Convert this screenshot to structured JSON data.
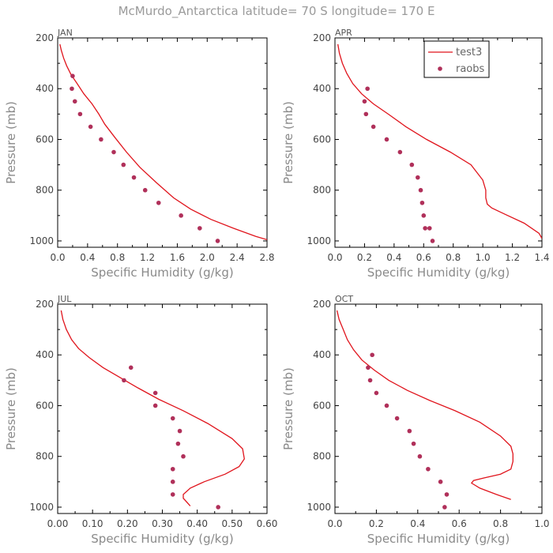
{
  "figure": {
    "title": "McMurdo_Antarctica  latitude= 70 S longitude= 170 E",
    "ylabel": "Pressure (mb)",
    "xlabel": "Specific Humidity (g/kg)"
  },
  "colors": {
    "line": "#e0141c",
    "points": "#b0305a",
    "axis": "#000000"
  },
  "legend": {
    "panel": 1,
    "entries": [
      {
        "label": "test3",
        "kind": "line"
      },
      {
        "label": "raobs",
        "kind": "point"
      }
    ]
  },
  "chart_data": [
    {
      "type": "line",
      "panel_label": "JAN",
      "xlabel": "Specific Humidity (g/kg)",
      "ylabel": "Pressure (mb)",
      "xlim": [
        0,
        2.8
      ],
      "ylim": [
        200,
        1025
      ],
      "y_inverted": true,
      "xticks": [
        "0.0",
        "0.4",
        "0.8",
        "1.2",
        "1.6",
        "2.0",
        "2.4",
        "2.8"
      ],
      "yticks": [
        "200",
        "400",
        "600",
        "800",
        "1000"
      ],
      "series": [
        {
          "name": "test3",
          "style": "line",
          "x": [
            0.03,
            0.05,
            0.08,
            0.12,
            0.18,
            0.26,
            0.35,
            0.46,
            0.55,
            0.63,
            0.76,
            0.92,
            1.1,
            1.32,
            1.55,
            1.78,
            2.05,
            2.35,
            2.65,
            2.8
          ],
          "y": [
            225,
            250,
            280,
            310,
            345,
            380,
            420,
            460,
            500,
            540,
            590,
            650,
            710,
            770,
            830,
            875,
            915,
            950,
            982,
            995
          ]
        },
        {
          "name": "raobs",
          "style": "point",
          "x": [
            0.2,
            0.19,
            0.23,
            0.3,
            0.44,
            0.58,
            0.75,
            0.88,
            1.02,
            1.17,
            1.35,
            1.65,
            1.9,
            2.14
          ],
          "y": [
            350,
            400,
            450,
            500,
            550,
            600,
            650,
            700,
            750,
            800,
            850,
            900,
            950,
            1000
          ]
        }
      ]
    },
    {
      "type": "line",
      "panel_label": "APR",
      "xlabel": "Specific Humidity (g/kg)",
      "ylabel": "Pressure (mb)",
      "xlim": [
        0,
        1.4
      ],
      "ylim": [
        200,
        1025
      ],
      "y_inverted": true,
      "xticks": [
        "0.0",
        "0.2",
        "0.4",
        "0.6",
        "0.8",
        "1.0",
        "1.2",
        "1.4"
      ],
      "yticks": [
        "200",
        "400",
        "600",
        "800",
        "1000"
      ],
      "series": [
        {
          "name": "test3",
          "style": "line",
          "x": [
            0.02,
            0.03,
            0.05,
            0.08,
            0.12,
            0.18,
            0.26,
            0.36,
            0.48,
            0.62,
            0.78,
            0.92,
            1.0,
            1.02,
            1.02,
            1.03,
            1.06,
            1.15,
            1.28,
            1.38,
            1.4
          ],
          "y": [
            225,
            260,
            300,
            340,
            380,
            420,
            460,
            500,
            550,
            600,
            650,
            700,
            760,
            800,
            830,
            855,
            870,
            895,
            930,
            970,
            990
          ]
        },
        {
          "name": "raobs",
          "style": "point",
          "x": [
            0.22,
            0.2,
            0.21,
            0.26,
            0.35,
            0.44,
            0.52,
            0.56,
            0.58,
            0.59,
            0.6,
            0.61,
            0.64,
            0.66
          ],
          "y": [
            400,
            450,
            500,
            550,
            600,
            650,
            700,
            750,
            800,
            850,
            900,
            950,
            950,
            1000
          ]
        }
      ]
    },
    {
      "type": "line",
      "panel_label": "JUL",
      "xlabel": "Specific Humidity (g/kg)",
      "ylabel": "Pressure (mb)",
      "xlim": [
        0,
        0.6
      ],
      "ylim": [
        200,
        1025
      ],
      "y_inverted": true,
      "xticks": [
        "0.00",
        "0.10",
        "0.20",
        "0.30",
        "0.40",
        "0.50",
        "0.60"
      ],
      "yticks": [
        "200",
        "400",
        "600",
        "800",
        "1000"
      ],
      "series": [
        {
          "name": "test3",
          "style": "line",
          "x": [
            0.01,
            0.015,
            0.025,
            0.04,
            0.06,
            0.09,
            0.13,
            0.18,
            0.23,
            0.29,
            0.36,
            0.43,
            0.5,
            0.53,
            0.535,
            0.52,
            0.48,
            0.42,
            0.38,
            0.36,
            0.36,
            0.37,
            0.38
          ],
          "y": [
            225,
            260,
            300,
            340,
            375,
            410,
            450,
            490,
            530,
            575,
            620,
            670,
            730,
            770,
            810,
            840,
            870,
            900,
            925,
            950,
            965,
            980,
            995
          ]
        },
        {
          "name": "raobs",
          "style": "point",
          "x": [
            0.21,
            0.19,
            0.28,
            0.28,
            0.33,
            0.35,
            0.345,
            0.36,
            0.33,
            0.33,
            0.33,
            0.46
          ],
          "y": [
            450,
            500,
            550,
            600,
            650,
            700,
            750,
            800,
            850,
            900,
            950,
            1000
          ]
        }
      ]
    },
    {
      "type": "line",
      "panel_label": "OCT",
      "xlabel": "Specific Humidity (g/kg)",
      "ylabel": "Pressure (mb)",
      "xlim": [
        0,
        1.0
      ],
      "ylim": [
        200,
        1025
      ],
      "y_inverted": true,
      "xticks": [
        "0.0",
        "0.2",
        "0.4",
        "0.6",
        "0.8",
        "1.0"
      ],
      "yticks": [
        "200",
        "400",
        "600",
        "800",
        "1000"
      ],
      "series": [
        {
          "name": "test3",
          "style": "line",
          "x": [
            0.01,
            0.02,
            0.04,
            0.06,
            0.09,
            0.13,
            0.19,
            0.26,
            0.35,
            0.46,
            0.58,
            0.7,
            0.8,
            0.85,
            0.86,
            0.86,
            0.85,
            0.8,
            0.72,
            0.67,
            0.66,
            0.7,
            0.78,
            0.85
          ],
          "y": [
            225,
            260,
            300,
            340,
            380,
            420,
            460,
            500,
            540,
            580,
            620,
            665,
            720,
            760,
            790,
            820,
            850,
            870,
            885,
            895,
            905,
            925,
            950,
            970
          ]
        },
        {
          "name": "raobs",
          "style": "point",
          "x": [
            0.18,
            0.16,
            0.17,
            0.2,
            0.25,
            0.3,
            0.36,
            0.38,
            0.41,
            0.45,
            0.51,
            0.54,
            0.53
          ],
          "y": [
            400,
            450,
            500,
            550,
            600,
            650,
            700,
            750,
            800,
            850,
            900,
            950,
            1000
          ]
        }
      ]
    }
  ]
}
